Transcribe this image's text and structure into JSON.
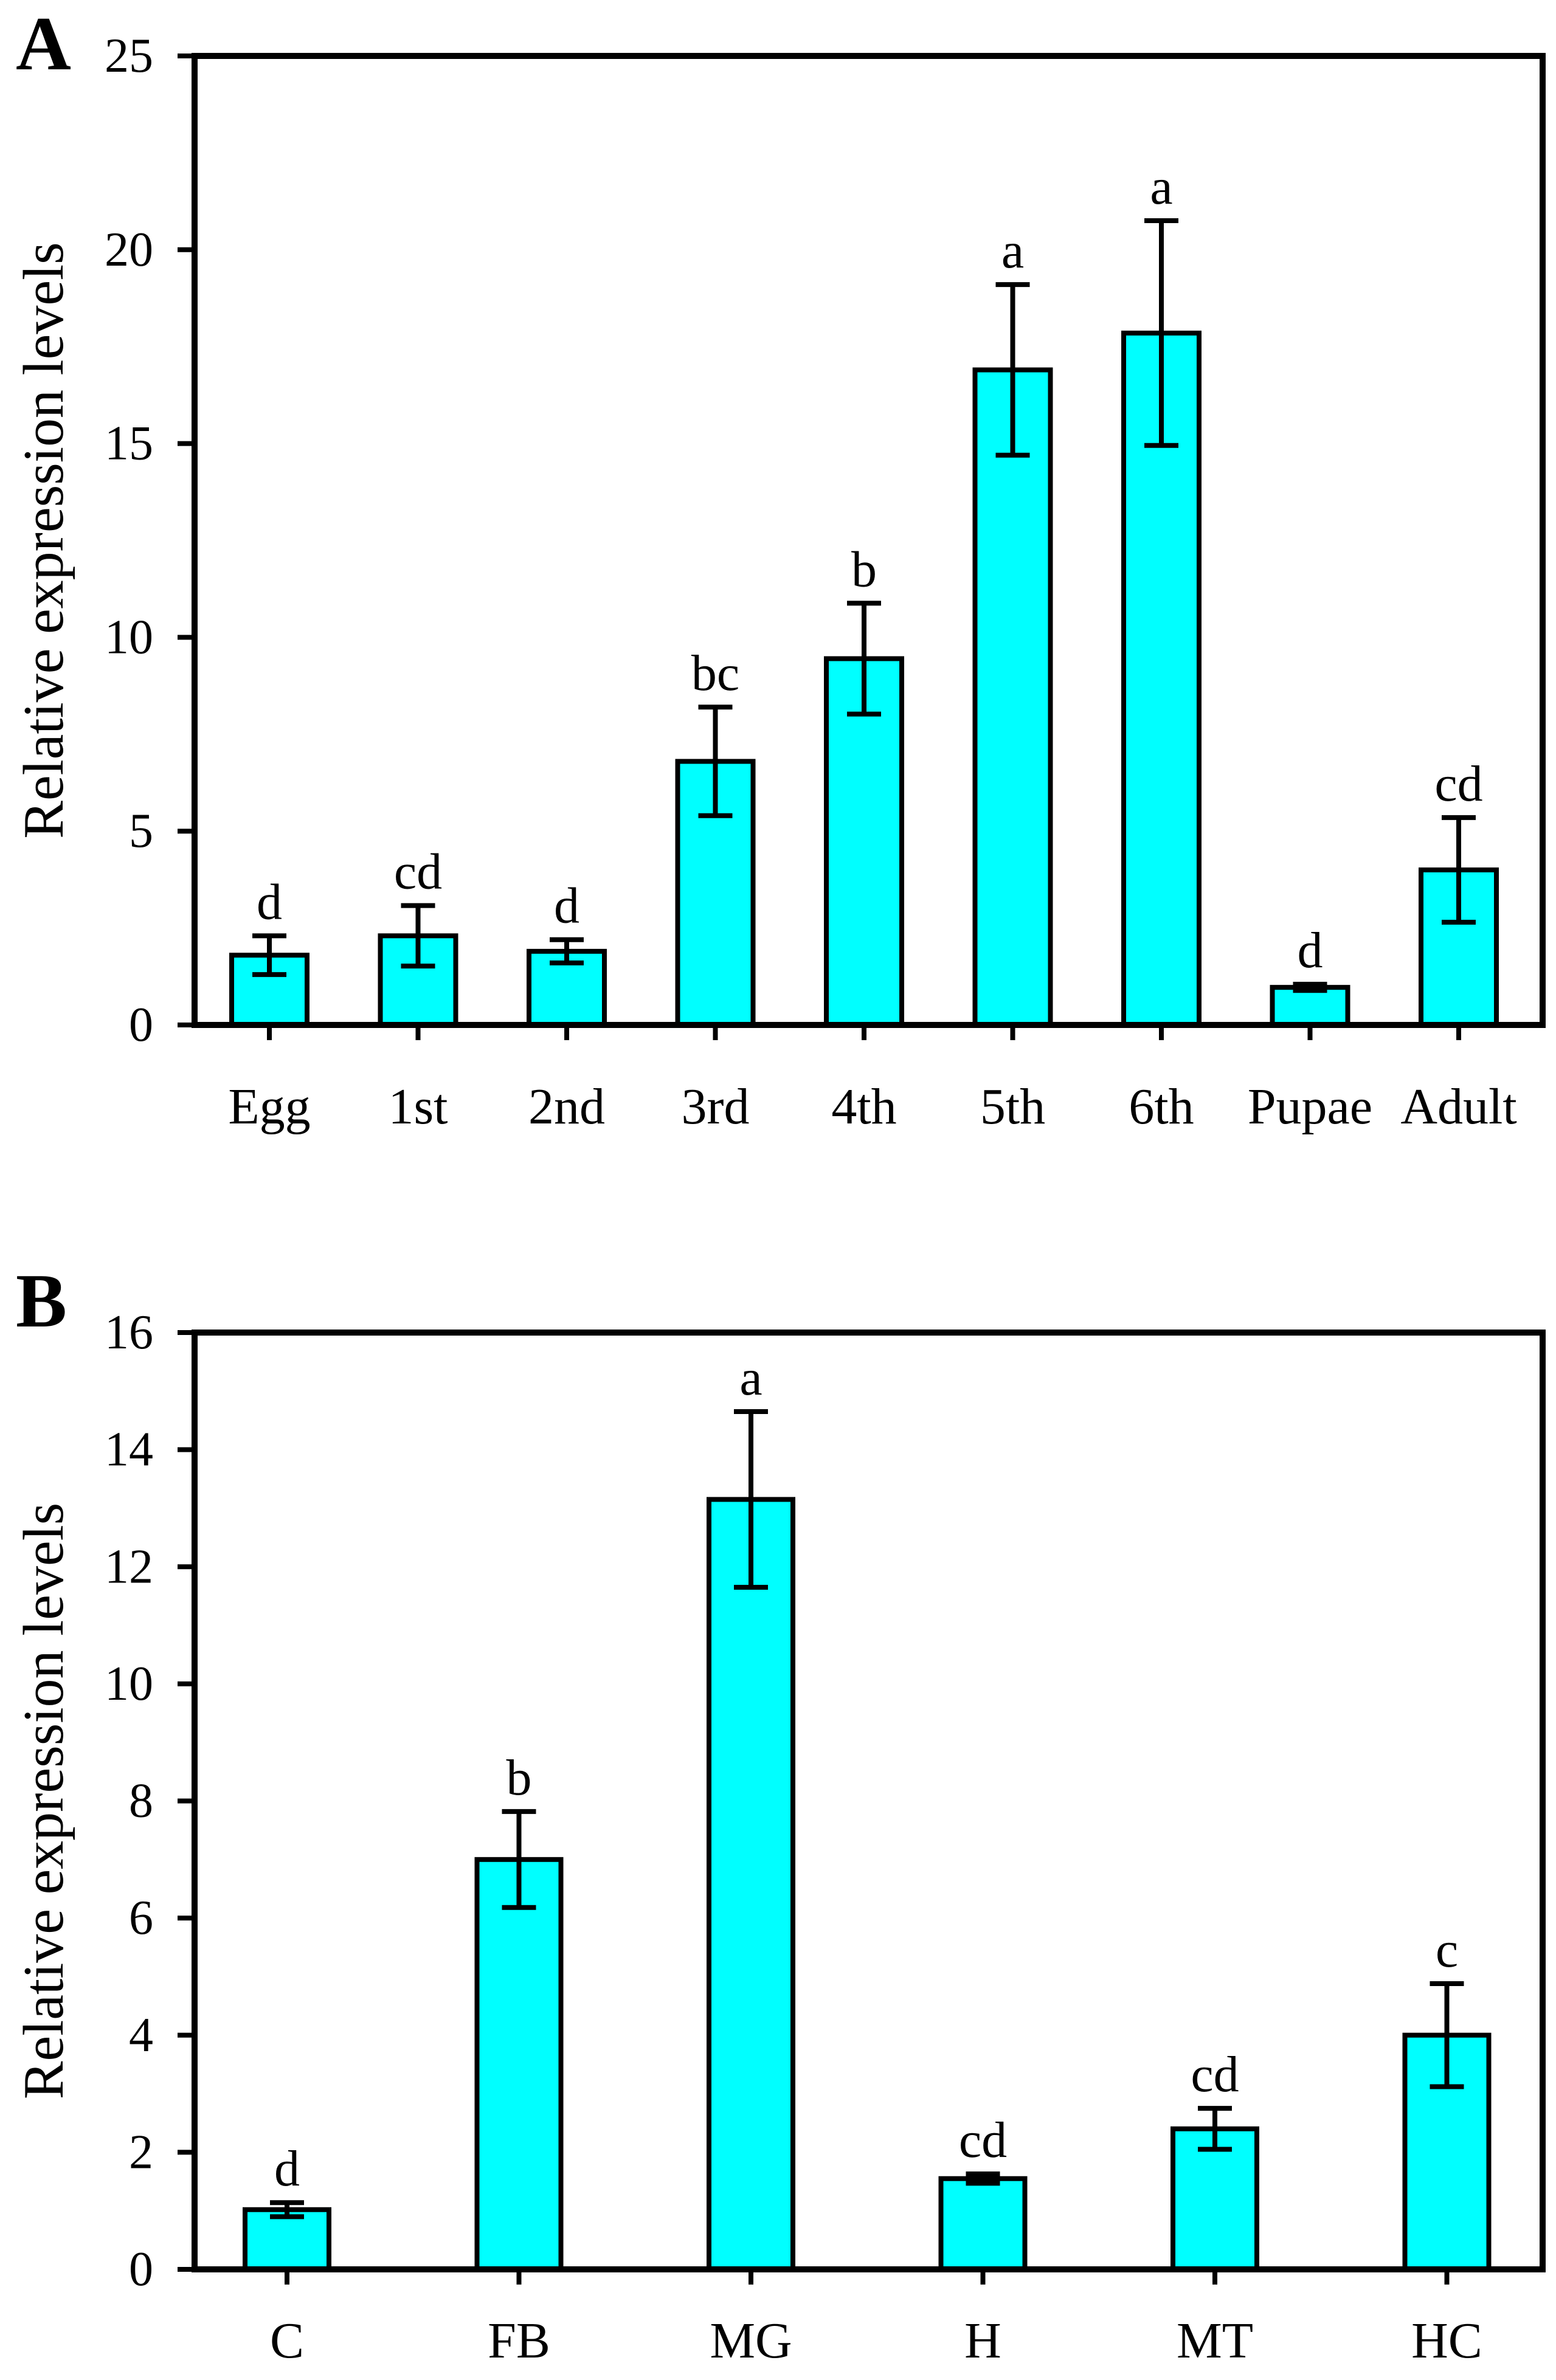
{
  "figure": {
    "background": "#FFFFFF",
    "text_color": "#000000"
  },
  "panels": [
    {
      "label": "A"
    },
    {
      "label": "B"
    }
  ],
  "chart_data": [
    {
      "type": "bar",
      "title": "",
      "xlabel": "",
      "ylabel": "Relative expression levels",
      "ylim": [
        0,
        25
      ],
      "yticks": [
        0,
        5,
        10,
        15,
        20,
        25
      ],
      "grid": false,
      "legend": null,
      "bar_color": "#00FFFF",
      "bar_border_color": "#000000",
      "error_bar_color": "#000000",
      "categories": [
        "Egg",
        "1st",
        "2nd",
        "3rd",
        "4th",
        "5th",
        "6th",
        "Pupae",
        "Adult"
      ],
      "values": [
        1.8,
        2.3,
        1.9,
        6.8,
        9.45,
        16.9,
        17.85,
        0.97,
        4.0
      ],
      "errors": [
        0.5,
        0.78,
        0.3,
        1.4,
        1.43,
        2.2,
        2.9,
        0.08,
        1.35
      ],
      "sig_letters": [
        "d",
        "cd",
        "d",
        "bc",
        "b",
        "a",
        "a",
        "d",
        "cd"
      ]
    },
    {
      "type": "bar",
      "title": "",
      "xlabel": "",
      "ylabel": "Relative expression levels",
      "ylim": [
        0,
        16
      ],
      "yticks": [
        0,
        2,
        4,
        6,
        8,
        10,
        12,
        14,
        16
      ],
      "grid": false,
      "legend": null,
      "bar_color": "#00FFFF",
      "bar_border_color": "#000000",
      "error_bar_color": "#000000",
      "categories": [
        "C",
        "FB",
        "MG",
        "H",
        "MT",
        "HC"
      ],
      "values": [
        1.02,
        7.0,
        13.15,
        1.55,
        2.4,
        4.0
      ],
      "errors": [
        0.12,
        0.82,
        1.5,
        0.08,
        0.35,
        0.88
      ],
      "sig_letters": [
        "d",
        "b",
        "a",
        "cd",
        "cd",
        "c"
      ]
    }
  ]
}
